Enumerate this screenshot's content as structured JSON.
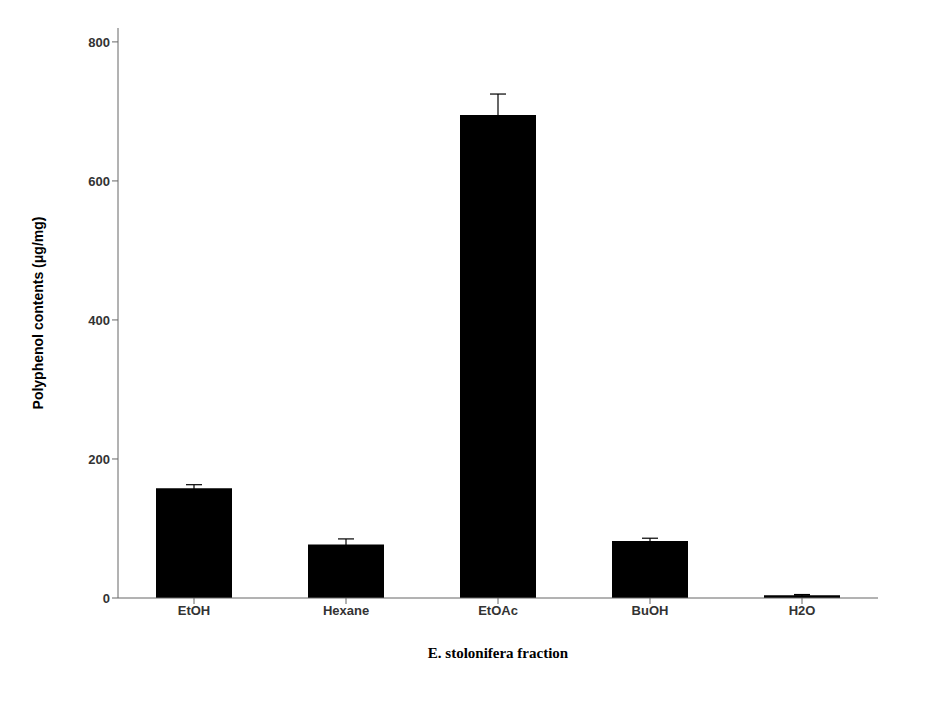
{
  "chart_data": {
    "type": "bar",
    "categories": [
      "EtOH",
      "Hexane",
      "EtOAc",
      "BuOH",
      "H2O"
    ],
    "values": [
      158,
      77,
      695,
      82,
      4
    ],
    "errors": [
      5,
      8,
      30,
      4,
      1
    ],
    "color": "#000000",
    "ylabel": "Polyphenol contents (μg/mg)",
    "xlabel": "E. stolonifera fraction",
    "ylim": [
      0,
      820
    ],
    "yticks": [
      0,
      200,
      400,
      600,
      800
    ],
    "grid": false
  }
}
